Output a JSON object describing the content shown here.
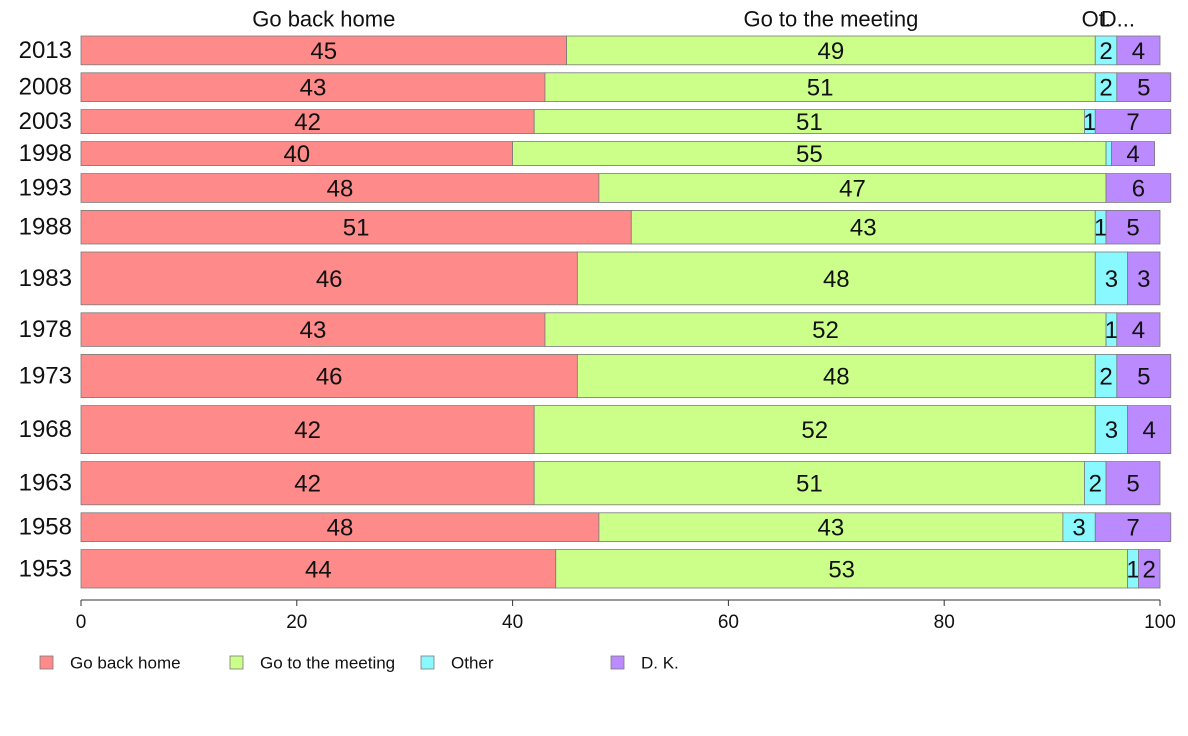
{
  "chart_data": {
    "type": "bar",
    "orientation": "horizontal",
    "stacked": true,
    "categories": [
      "2013",
      "2008",
      "2003",
      "1998",
      "1993",
      "1988",
      "1983",
      "1978",
      "1973",
      "1968",
      "1963",
      "1958",
      "1953"
    ],
    "series": [
      {
        "name": "Go back home",
        "color": "#FF8A8A",
        "values": [
          45,
          43,
          42,
          40,
          48,
          51,
          46,
          43,
          46,
          42,
          42,
          48,
          44
        ]
      },
      {
        "name": "Go to the meeting",
        "color": "#CCFF8A",
        "values": [
          49,
          51,
          51,
          55,
          47,
          43,
          48,
          52,
          48,
          52,
          51,
          43,
          53
        ]
      },
      {
        "name": "Other",
        "color": "#8AF8FF",
        "values": [
          2,
          2,
          1,
          0.5,
          0,
          1,
          3,
          1,
          2,
          3,
          2,
          3,
          1
        ]
      },
      {
        "name": "D. K.",
        "color": "#BB8AFF",
        "values": [
          4,
          5,
          7,
          4,
          6,
          5,
          3,
          4,
          5,
          4,
          5,
          7,
          2
        ]
      }
    ],
    "data_labels": [
      [
        "45",
        "49",
        "2",
        "4"
      ],
      [
        "43",
        "51",
        "2",
        "5"
      ],
      [
        "42",
        "51",
        "1",
        "7"
      ],
      [
        "40",
        "55",
        "",
        "4"
      ],
      [
        "48",
        "47",
        "",
        "6"
      ],
      [
        "51",
        "43",
        "1",
        "5"
      ],
      [
        "46",
        "48",
        "3",
        "3"
      ],
      [
        "43",
        "52",
        "1",
        "4"
      ],
      [
        "46",
        "48",
        "2",
        "5"
      ],
      [
        "42",
        "52",
        "3",
        "4"
      ],
      [
        "42",
        "51",
        "2",
        "5"
      ],
      [
        "48",
        "43",
        "3",
        "7"
      ],
      [
        "44",
        "53",
        "1",
        "2"
      ]
    ],
    "row_weights": [
      6,
      6,
      5,
      5,
      6,
      7,
      11,
      7,
      9,
      10,
      9,
      6,
      8
    ],
    "column_headers": [
      "Go back home",
      "Go to the meeting",
      "Ot.",
      "D..."
    ],
    "xlim": [
      0,
      100
    ],
    "xticks": [
      0,
      20,
      40,
      60,
      80,
      100
    ],
    "legend_position": "bottom"
  }
}
